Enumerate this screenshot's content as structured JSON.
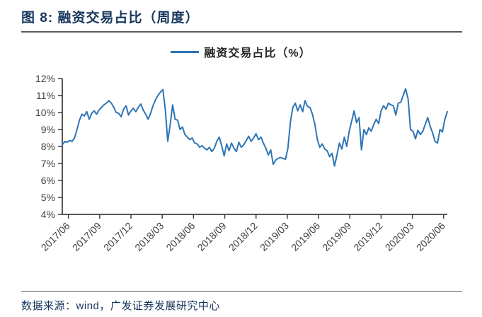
{
  "figure": {
    "title": "图 8: 融资交易占比（周度）",
    "source": "数据来源：wind，广发证券发展研究中心"
  },
  "legend": {
    "label": "融资交易占比（%）"
  },
  "colors": {
    "line": "#2E75B6",
    "title_text": "#17365D",
    "axis": "#404040",
    "tick_label": "#404040",
    "divider": "#595959"
  },
  "chart_data": {
    "type": "line",
    "title": "融资交易占比（周度）",
    "frequency": "weekly",
    "unit": "%",
    "grid": false,
    "legend_position": "top-center",
    "ylim": [
      4,
      12
    ],
    "y_ticks": [
      4,
      5,
      6,
      7,
      8,
      9,
      10,
      11,
      12
    ],
    "y_tick_suffix": "%",
    "x_tick_labels": [
      "2017/06",
      "2017/09",
      "2017/12",
      "2018/03",
      "2018/06",
      "2018/09",
      "2018/12",
      "2019/03",
      "2019/06",
      "2019/09",
      "2019/12",
      "2020/03",
      "2020/06"
    ],
    "layout": {
      "first_tick_at_point": 2.5,
      "points_per_tick": 12.75
    },
    "series": [
      {
        "name": "融资交易占比（%）",
        "values": [
          8.1,
          8.3,
          8.25,
          8.35,
          8.3,
          8.5,
          9.0,
          9.55,
          9.9,
          9.8,
          10.05,
          9.6,
          9.95,
          10.1,
          9.9,
          10.15,
          10.3,
          10.45,
          10.55,
          10.7,
          10.55,
          10.3,
          10.0,
          9.95,
          9.75,
          10.2,
          10.4,
          9.85,
          10.1,
          10.25,
          10.05,
          10.3,
          10.5,
          10.15,
          9.9,
          9.6,
          9.95,
          10.4,
          10.75,
          11.0,
          11.2,
          11.35,
          10.2,
          8.3,
          9.3,
          10.45,
          9.6,
          9.55,
          9.0,
          9.15,
          8.7,
          8.55,
          8.4,
          8.5,
          8.2,
          8.15,
          7.95,
          8.05,
          7.9,
          7.8,
          7.95,
          7.7,
          7.9,
          8.3,
          8.55,
          8.05,
          7.45,
          8.15,
          7.75,
          8.2,
          7.9,
          7.7,
          8.25,
          7.95,
          8.1,
          8.35,
          8.6,
          8.3,
          8.5,
          8.75,
          8.4,
          8.55,
          8.2,
          7.9,
          7.5,
          7.8,
          6.95,
          7.2,
          7.3,
          7.35,
          7.3,
          7.25,
          7.9,
          9.4,
          10.3,
          10.55,
          10.1,
          10.45,
          10.05,
          10.7,
          10.35,
          10.3,
          9.9,
          9.3,
          8.4,
          7.95,
          8.15,
          7.85,
          7.75,
          7.4,
          7.6,
          6.85,
          7.5,
          8.2,
          7.85,
          8.55,
          8.0,
          8.9,
          9.5,
          10.1,
          9.4,
          9.7,
          7.8,
          9.0,
          8.7,
          9.1,
          8.9,
          9.3,
          9.6,
          9.35,
          10.1,
          10.4,
          10.2,
          10.55,
          10.45,
          10.4,
          9.85,
          10.55,
          10.6,
          11.0,
          11.4,
          10.8,
          9.0,
          8.9,
          8.45,
          8.95,
          8.7,
          8.9,
          9.3,
          9.7,
          9.2,
          8.8,
          8.3,
          8.2,
          9.0,
          8.85,
          9.6,
          10.05
        ]
      }
    ]
  }
}
